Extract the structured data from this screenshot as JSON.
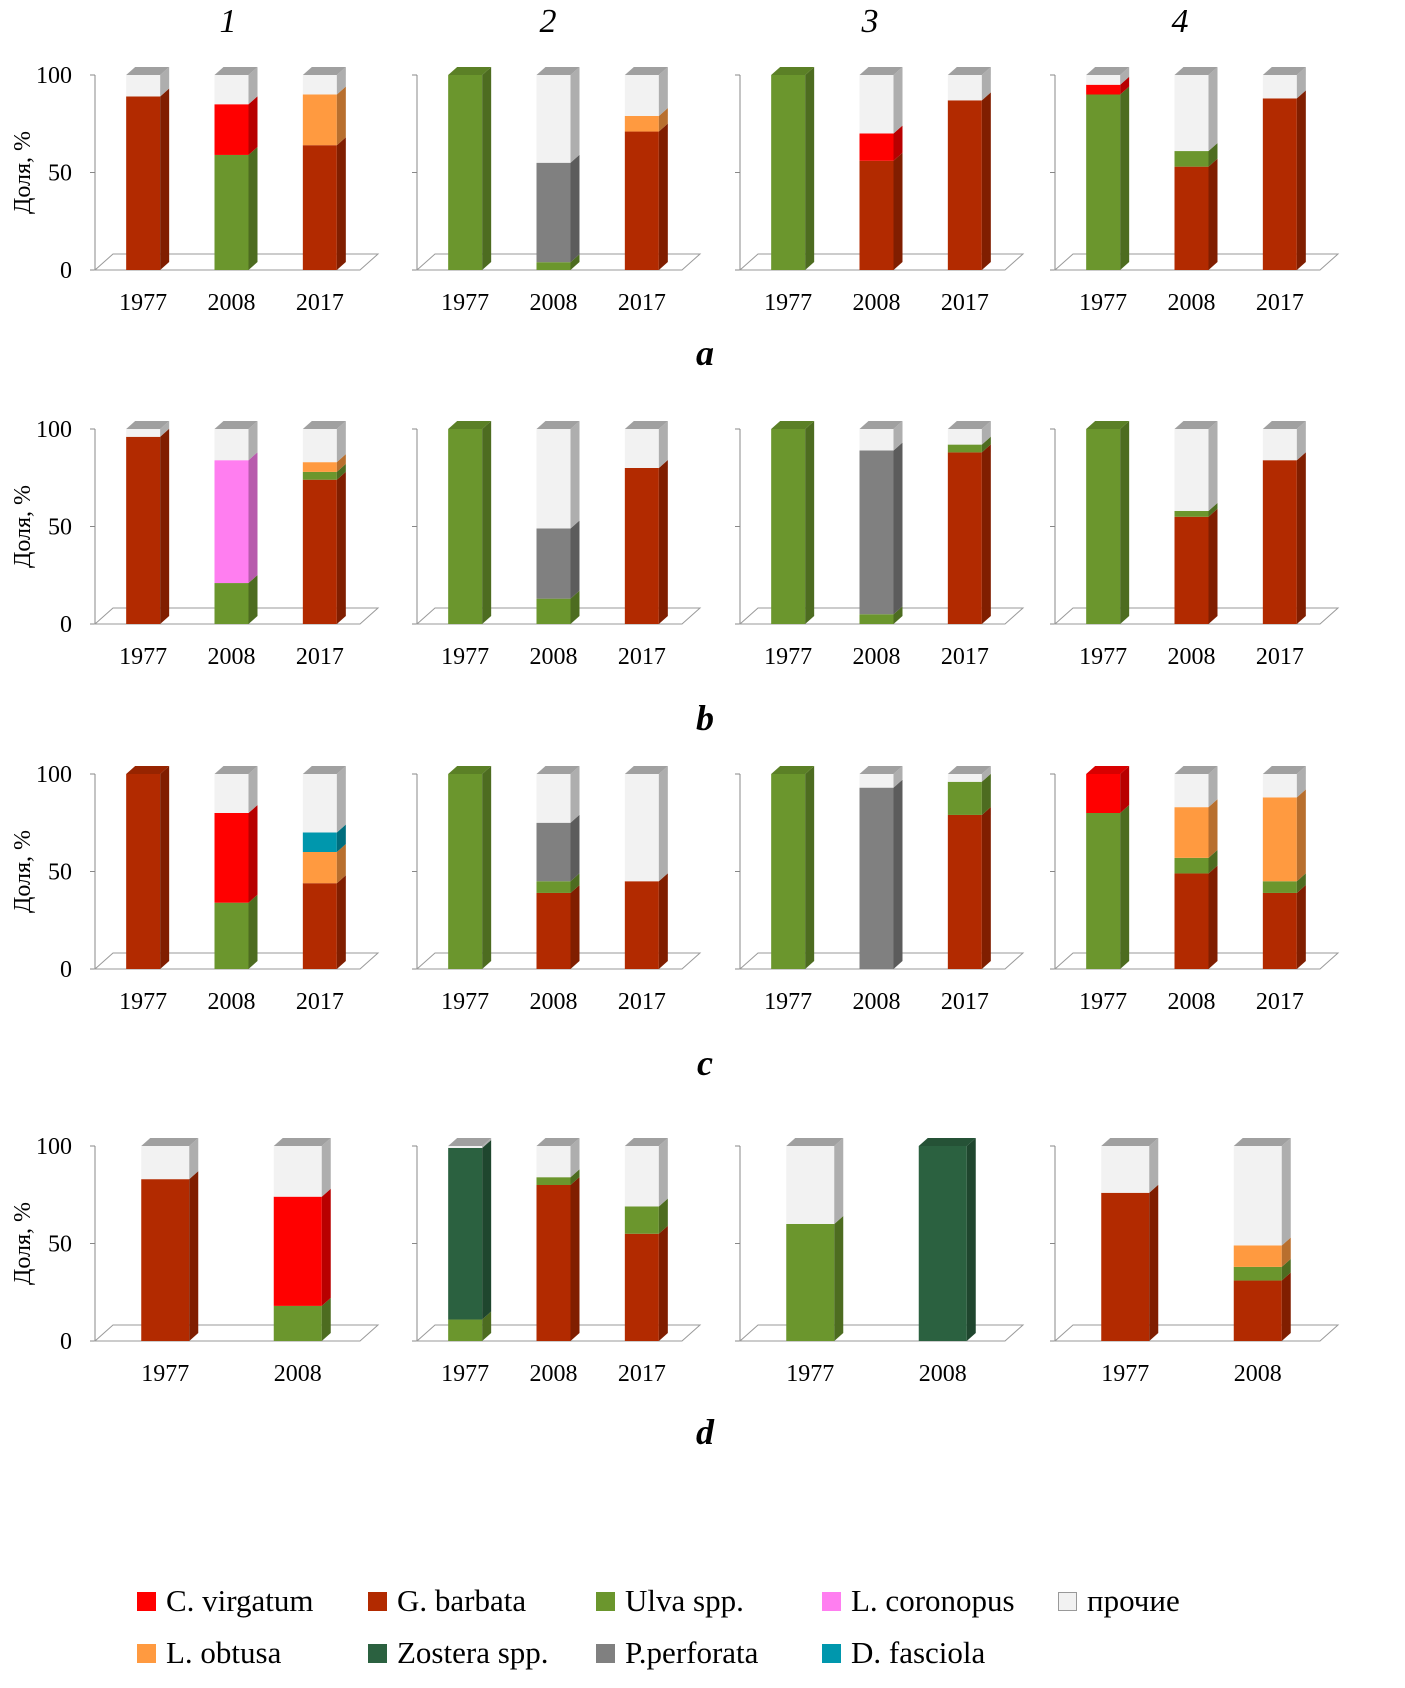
{
  "colors": {
    "C. virgatum": "#ff0000",
    "G. barbata": "#b22a00",
    "Ulva spp.": "#6b962d",
    "L. coronopus": "#ff7ef0",
    "прочие": "#f2f2f2",
    "L. obtusa": "#ff9a40",
    "Zostera spp.": "#2b6140",
    "P.perforata": "#808080",
    "D. fasciola": "#0097ad"
  },
  "legend": {
    "items": [
      "C. virgatum",
      "G. barbata",
      "Ulva spp.",
      "L. coronopus",
      "прочие",
      "L. obtusa",
      "Zostera spp.",
      "P.perforata",
      "D. fasciola"
    ]
  },
  "chart_data": {
    "type": "bar",
    "stacked": true,
    "ylabel": "Доля, %",
    "ylim": [
      0,
      100
    ],
    "yticks": [
      0,
      50,
      100
    ],
    "columns": [
      "1",
      "2",
      "3",
      "4"
    ],
    "rows": [
      {
        "label": "a",
        "charts": [
          {
            "categories": [
              "1977",
              "2008",
              "2017"
            ],
            "bars": [
              [
                {
                  "species": "G. barbata",
                  "value": 89
                },
                {
                  "species": "прочие",
                  "value": 11
                }
              ],
              [
                {
                  "species": "Ulva spp.",
                  "value": 59
                },
                {
                  "species": "C. virgatum",
                  "value": 26
                },
                {
                  "species": "прочие",
                  "value": 15
                }
              ],
              [
                {
                  "species": "G. barbata",
                  "value": 64
                },
                {
                  "species": "L. obtusa",
                  "value": 26
                },
                {
                  "species": "прочие",
                  "value": 10
                }
              ]
            ]
          },
          {
            "categories": [
              "1977",
              "2008",
              "2017"
            ],
            "bars": [
              [
                {
                  "species": "Ulva spp.",
                  "value": 100
                }
              ],
              [
                {
                  "species": "Ulva spp.",
                  "value": 4
                },
                {
                  "species": "P.perforata",
                  "value": 51
                },
                {
                  "species": "прочие",
                  "value": 45
                }
              ],
              [
                {
                  "species": "G. barbata",
                  "value": 71
                },
                {
                  "species": "L. obtusa",
                  "value": 8
                },
                {
                  "species": "прочие",
                  "value": 21
                }
              ]
            ]
          },
          {
            "categories": [
              "1977",
              "2008",
              "2017"
            ],
            "bars": [
              [
                {
                  "species": "Ulva spp.",
                  "value": 100
                }
              ],
              [
                {
                  "species": "G. barbata",
                  "value": 56
                },
                {
                  "species": "C. virgatum",
                  "value": 14
                },
                {
                  "species": "прочие",
                  "value": 30
                }
              ],
              [
                {
                  "species": "G. barbata",
                  "value": 87
                },
                {
                  "species": "прочие",
                  "value": 13
                }
              ]
            ]
          },
          {
            "categories": [
              "1977",
              "2008",
              "2017"
            ],
            "bars": [
              [
                {
                  "species": "Ulva spp.",
                  "value": 90
                },
                {
                  "species": "C. virgatum",
                  "value": 5
                },
                {
                  "species": "прочие",
                  "value": 5
                }
              ],
              [
                {
                  "species": "G. barbata",
                  "value": 53
                },
                {
                  "species": "Ulva spp.",
                  "value": 8
                },
                {
                  "species": "прочие",
                  "value": 39
                }
              ],
              [
                {
                  "species": "G. barbata",
                  "value": 88
                },
                {
                  "species": "прочие",
                  "value": 12
                }
              ]
            ]
          }
        ]
      },
      {
        "label": "b",
        "charts": [
          {
            "categories": [
              "1977",
              "2008",
              "2017"
            ],
            "bars": [
              [
                {
                  "species": "G. barbata",
                  "value": 96
                },
                {
                  "species": "прочие",
                  "value": 4
                }
              ],
              [
                {
                  "species": "Ulva spp.",
                  "value": 21
                },
                {
                  "species": "L. coronopus",
                  "value": 63
                },
                {
                  "species": "прочие",
                  "value": 16
                }
              ],
              [
                {
                  "species": "G. barbata",
                  "value": 74
                },
                {
                  "species": "Ulva spp.",
                  "value": 4
                },
                {
                  "species": "L. obtusa",
                  "value": 5
                },
                {
                  "species": "прочие",
                  "value": 17
                }
              ]
            ]
          },
          {
            "categories": [
              "1977",
              "2008",
              "2017"
            ],
            "bars": [
              [
                {
                  "species": "Ulva spp.",
                  "value": 100
                }
              ],
              [
                {
                  "species": "Ulva spp.",
                  "value": 13
                },
                {
                  "species": "P.perforata",
                  "value": 36
                },
                {
                  "species": "прочие",
                  "value": 51
                }
              ],
              [
                {
                  "species": "G. barbata",
                  "value": 80
                },
                {
                  "species": "прочие",
                  "value": 20
                }
              ]
            ]
          },
          {
            "categories": [
              "1977",
              "2008",
              "2017"
            ],
            "bars": [
              [
                {
                  "species": "Ulva spp.",
                  "value": 100
                }
              ],
              [
                {
                  "species": "Ulva spp.",
                  "value": 5
                },
                {
                  "species": "P.perforata",
                  "value": 84
                },
                {
                  "species": "прочие",
                  "value": 11
                }
              ],
              [
                {
                  "species": "G. barbata",
                  "value": 88
                },
                {
                  "species": "Ulva spp.",
                  "value": 4
                },
                {
                  "species": "прочие",
                  "value": 8
                }
              ]
            ]
          },
          {
            "categories": [
              "1977",
              "2008",
              "2017"
            ],
            "bars": [
              [
                {
                  "species": "Ulva spp.",
                  "value": 100
                }
              ],
              [
                {
                  "species": "G. barbata",
                  "value": 55
                },
                {
                  "species": "Ulva spp.",
                  "value": 3
                },
                {
                  "species": "прочие",
                  "value": 42
                }
              ],
              [
                {
                  "species": "G. barbata",
                  "value": 84
                },
                {
                  "species": "прочие",
                  "value": 16
                }
              ]
            ]
          }
        ]
      },
      {
        "label": "c",
        "charts": [
          {
            "categories": [
              "1977",
              "2008",
              "2017"
            ],
            "bars": [
              [
                {
                  "species": "G. barbata",
                  "value": 100
                }
              ],
              [
                {
                  "species": "Ulva spp.",
                  "value": 34
                },
                {
                  "species": "C. virgatum",
                  "value": 46
                },
                {
                  "species": "прочие",
                  "value": 20
                }
              ],
              [
                {
                  "species": "G. barbata",
                  "value": 44
                },
                {
                  "species": "L. obtusa",
                  "value": 16
                },
                {
                  "species": "D. fasciola",
                  "value": 10
                },
                {
                  "species": "прочие",
                  "value": 30
                }
              ]
            ]
          },
          {
            "categories": [
              "1977",
              "2008",
              "2017"
            ],
            "bars": [
              [
                {
                  "species": "Ulva spp.",
                  "value": 100
                }
              ],
              [
                {
                  "species": "G. barbata",
                  "value": 39
                },
                {
                  "species": "Ulva spp.",
                  "value": 6
                },
                {
                  "species": "P.perforata",
                  "value": 30
                },
                {
                  "species": "прочие",
                  "value": 25
                }
              ],
              [
                {
                  "species": "G. barbata",
                  "value": 45
                },
                {
                  "species": "прочие",
                  "value": 55
                }
              ]
            ]
          },
          {
            "categories": [
              "1977",
              "2008",
              "2017"
            ],
            "bars": [
              [
                {
                  "species": "Ulva spp.",
                  "value": 100
                }
              ],
              [
                {
                  "species": "P.perforata",
                  "value": 93
                },
                {
                  "species": "прочие",
                  "value": 7
                }
              ],
              [
                {
                  "species": "G. barbata",
                  "value": 79
                },
                {
                  "species": "Ulva spp.",
                  "value": 17
                },
                {
                  "species": "прочие",
                  "value": 4
                }
              ]
            ]
          },
          {
            "categories": [
              "1977",
              "2008",
              "2017"
            ],
            "bars": [
              [
                {
                  "species": "Ulva spp.",
                  "value": 80
                },
                {
                  "species": "C. virgatum",
                  "value": 20
                }
              ],
              [
                {
                  "species": "G. barbata",
                  "value": 49
                },
                {
                  "species": "Ulva spp.",
                  "value": 8
                },
                {
                  "species": "L. obtusa",
                  "value": 26
                },
                {
                  "species": "прочие",
                  "value": 17
                }
              ],
              [
                {
                  "species": "G. barbata",
                  "value": 39
                },
                {
                  "species": "Ulva spp.",
                  "value": 6
                },
                {
                  "species": "L. obtusa",
                  "value": 43
                },
                {
                  "species": "прочие",
                  "value": 12
                }
              ]
            ]
          }
        ]
      },
      {
        "label": "d",
        "charts": [
          {
            "categories": [
              "1977",
              "2008"
            ],
            "bars": [
              [
                {
                  "species": "G. barbata",
                  "value": 83
                },
                {
                  "species": "прочие",
                  "value": 17
                }
              ],
              [
                {
                  "species": "Ulva spp.",
                  "value": 18
                },
                {
                  "species": "C. virgatum",
                  "value": 56
                },
                {
                  "species": "прочие",
                  "value": 26
                }
              ]
            ]
          },
          {
            "categories": [
              "1977",
              "2008",
              "2017"
            ],
            "bars": [
              [
                {
                  "species": "Ulva spp.",
                  "value": 11
                },
                {
                  "species": "Zostera spp.",
                  "value": 88
                },
                {
                  "species": "прочие",
                  "value": 1
                }
              ],
              [
                {
                  "species": "G. barbata",
                  "value": 80
                },
                {
                  "species": "Ulva spp.",
                  "value": 4
                },
                {
                  "species": "прочие",
                  "value": 16
                }
              ],
              [
                {
                  "species": "G. barbata",
                  "value": 55
                },
                {
                  "species": "Ulva spp.",
                  "value": 14
                },
                {
                  "species": "прочие",
                  "value": 31
                }
              ]
            ]
          },
          {
            "categories": [
              "1977",
              "2008"
            ],
            "bars": [
              [
                {
                  "species": "Ulva spp.",
                  "value": 60
                },
                {
                  "species": "прочие",
                  "value": 40
                }
              ],
              [
                {
                  "species": "Zostera spp.",
                  "value": 100
                }
              ]
            ]
          },
          {
            "categories": [
              "1977",
              "2008"
            ],
            "bars": [
              [
                {
                  "species": "G. barbata",
                  "value": 76
                },
                {
                  "species": "прочие",
                  "value": 24
                }
              ],
              [
                {
                  "species": "G. barbata",
                  "value": 31
                },
                {
                  "species": "Ulva spp.",
                  "value": 7
                },
                {
                  "species": "L. obtusa",
                  "value": 11
                },
                {
                  "species": "прочие",
                  "value": 51
                }
              ]
            ]
          }
        ]
      }
    ]
  }
}
